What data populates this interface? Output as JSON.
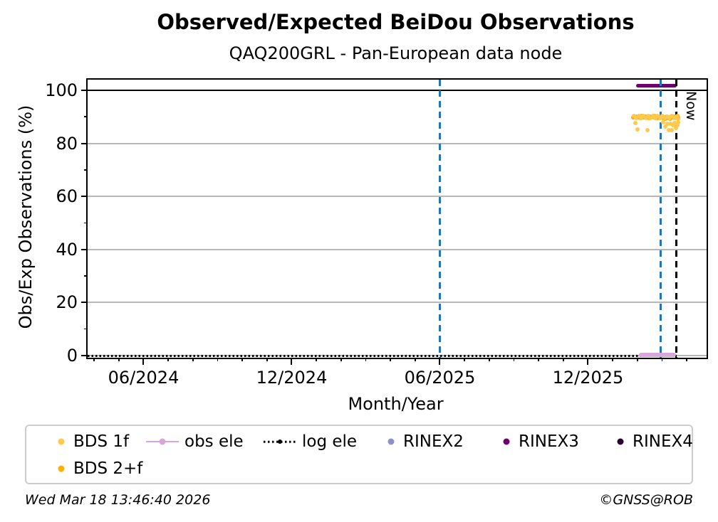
{
  "title": "Observed/Expected BeiDou Observations",
  "subtitle": "QAQ200GRL - Pan-European data node",
  "now_label": "Now",
  "footer": {
    "timestamp": "Wed Mar 18 13:46:40 2026",
    "credit": "©GNSS@ROB"
  },
  "chart_data": {
    "type": "scatter",
    "xlabel": "Month/Year",
    "ylabel": "Obs/Exp Observations (%)",
    "xlim": [
      2024.228,
      2026.317
    ],
    "ylim": [
      -0.8,
      104.0
    ],
    "grid": "horizontal",
    "grid_color": "#b7b7b7",
    "x_major_ticks": [
      {
        "t": 2024.4167,
        "label": "06/2024"
      },
      {
        "t": 2024.9167,
        "label": "12/2024"
      },
      {
        "t": 2025.4167,
        "label": "06/2025"
      },
      {
        "t": 2025.9167,
        "label": "12/2025"
      }
    ],
    "x_minor_tick_interval": "monthly",
    "y_major_ticks": [
      0,
      20,
      40,
      60,
      80,
      100
    ],
    "y_minor_ticks": [
      10,
      30,
      50,
      70,
      90
    ],
    "solid_hline": 100,
    "vlines": [
      {
        "name": "marker-line-jun-2025",
        "x": 2025.4167,
        "color": "#1f77b4",
        "style": "dashed"
      },
      {
        "name": "marker-line-latest-data",
        "x": 2026.162,
        "color": "#1f77b4",
        "style": "dashed"
      },
      {
        "name": "now-line",
        "x": 2026.216,
        "color": "#000000",
        "style": "dashed"
      }
    ],
    "segments": [
      {
        "name": "log ele",
        "x1": 2024.228,
        "x2": 2026.216,
        "y": 0.0,
        "color": "#000000",
        "style": "dotted",
        "thickness": 3
      },
      {
        "name": "obs ele",
        "x1": 2026.088,
        "x2": 2026.214,
        "y": 0.4,
        "color": "#D9A6DC",
        "style": "solid",
        "thickness": 6
      },
      {
        "name": "RINEX3",
        "x1": 2026.079,
        "x2": 2026.217,
        "y": 101.8,
        "color": "#6E006E",
        "style": "solid",
        "thickness": 5
      }
    ],
    "series": [
      {
        "name": "BDS 2+f",
        "color": "#FFB000",
        "points": [
          [
            2026.07,
            89.9
          ],
          [
            2026.074,
            90.0
          ],
          [
            2026.078,
            89.7
          ],
          [
            2026.082,
            90.1
          ],
          [
            2026.086,
            89.8
          ],
          [
            2026.09,
            90.0
          ],
          [
            2026.094,
            89.6
          ],
          [
            2026.098,
            90.2
          ],
          [
            2026.102,
            89.9
          ],
          [
            2026.106,
            89.7
          ],
          [
            2026.11,
            90.1
          ],
          [
            2026.114,
            89.8
          ],
          [
            2026.118,
            90.0
          ],
          [
            2026.122,
            89.5
          ],
          [
            2026.126,
            90.1
          ],
          [
            2026.13,
            89.8
          ],
          [
            2026.134,
            90.0
          ],
          [
            2026.138,
            89.7
          ],
          [
            2026.142,
            90.2
          ],
          [
            2026.146,
            89.9
          ],
          [
            2026.15,
            89.6
          ],
          [
            2026.154,
            90.0
          ],
          [
            2026.158,
            89.8
          ],
          [
            2026.162,
            90.1
          ],
          [
            2026.166,
            89.7
          ],
          [
            2026.17,
            89.4
          ],
          [
            2026.174,
            89.9
          ],
          [
            2026.178,
            89.3
          ],
          [
            2026.182,
            90.0
          ],
          [
            2026.186,
            89.6
          ],
          [
            2026.19,
            89.9
          ],
          [
            2026.194,
            89.2
          ],
          [
            2026.198,
            90.0
          ],
          [
            2026.202,
            89.7
          ],
          [
            2026.206,
            90.1
          ],
          [
            2026.21,
            89.5
          ],
          [
            2026.214,
            89.9
          ],
          [
            2026.218,
            90.2
          ],
          [
            2026.222,
            89.8
          ]
        ]
      },
      {
        "name": "BDS 1f",
        "color": "#FFC94D",
        "points": [
          [
            2026.072,
            90.3
          ],
          [
            2026.08,
            89.4
          ],
          [
            2026.088,
            90.2
          ],
          [
            2026.096,
            89.5
          ],
          [
            2026.104,
            90.3
          ],
          [
            2026.112,
            89.4
          ],
          [
            2026.12,
            90.2
          ],
          [
            2026.128,
            89.5
          ],
          [
            2026.136,
            90.3
          ],
          [
            2026.144,
            89.4
          ],
          [
            2026.152,
            90.2
          ],
          [
            2026.16,
            89.5
          ],
          [
            2026.168,
            90.2
          ],
          [
            2026.176,
            89.6
          ],
          [
            2026.184,
            90.1
          ],
          [
            2026.192,
            89.5
          ],
          [
            2026.2,
            90.2
          ],
          [
            2026.208,
            89.6
          ],
          [
            2026.216,
            90.0
          ],
          [
            2026.221,
            89.3
          ],
          [
            2026.076,
            87.6
          ],
          [
            2026.085,
            85.3
          ],
          [
            2026.118,
            84.9
          ],
          [
            2026.17,
            87.8
          ],
          [
            2026.178,
            86.2
          ],
          [
            2026.185,
            87.5
          ],
          [
            2026.19,
            85.0
          ],
          [
            2026.195,
            87.3
          ],
          [
            2026.2,
            84.9
          ],
          [
            2026.205,
            86.8
          ],
          [
            2026.21,
            87.6
          ],
          [
            2026.214,
            85.8
          ],
          [
            2026.218,
            86.9
          ],
          [
            2026.222,
            87.8
          ]
        ]
      }
    ],
    "legend": [
      {
        "label": "BDS 1f",
        "marker": "dot",
        "color": "#FFC94D"
      },
      {
        "label": "obs ele",
        "marker": "line-dot",
        "color": "#D9A6DC"
      },
      {
        "label": "log ele",
        "marker": "dotted-line",
        "color": "#000000"
      },
      {
        "label": "RINEX2",
        "marker": "dot",
        "color": "#9191C9"
      },
      {
        "label": "RINEX3",
        "marker": "dot",
        "color": "#6E006E"
      },
      {
        "label": "RINEX4",
        "marker": "dot",
        "color": "#2B0033"
      },
      {
        "label": "BDS 2+f",
        "marker": "dot",
        "color": "#FFB000"
      }
    ]
  }
}
